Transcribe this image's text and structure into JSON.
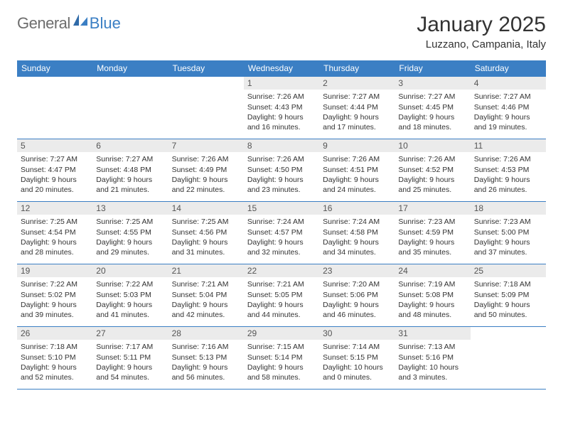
{
  "brand": {
    "general": "General",
    "blue": "Blue"
  },
  "title": "January 2025",
  "location": "Luzzano, Campania, Italy",
  "colors": {
    "header_bg": "#3b7fc4",
    "header_text": "#ffffff",
    "datebar_bg": "#ebebeb",
    "datebar_text": "#555555",
    "body_text": "#333333",
    "rule": "#3b7fc4",
    "logo_gray": "#6d6d6d",
    "logo_blue": "#3b7fc4"
  },
  "day_names": [
    "Sunday",
    "Monday",
    "Tuesday",
    "Wednesday",
    "Thursday",
    "Friday",
    "Saturday"
  ],
  "weeks": [
    [
      null,
      null,
      null,
      {
        "n": "1",
        "sr": "Sunrise: 7:26 AM",
        "ss": "Sunset: 4:43 PM",
        "d1": "Daylight: 9 hours",
        "d2": "and 16 minutes."
      },
      {
        "n": "2",
        "sr": "Sunrise: 7:27 AM",
        "ss": "Sunset: 4:44 PM",
        "d1": "Daylight: 9 hours",
        "d2": "and 17 minutes."
      },
      {
        "n": "3",
        "sr": "Sunrise: 7:27 AM",
        "ss": "Sunset: 4:45 PM",
        "d1": "Daylight: 9 hours",
        "d2": "and 18 minutes."
      },
      {
        "n": "4",
        "sr": "Sunrise: 7:27 AM",
        "ss": "Sunset: 4:46 PM",
        "d1": "Daylight: 9 hours",
        "d2": "and 19 minutes."
      }
    ],
    [
      {
        "n": "5",
        "sr": "Sunrise: 7:27 AM",
        "ss": "Sunset: 4:47 PM",
        "d1": "Daylight: 9 hours",
        "d2": "and 20 minutes."
      },
      {
        "n": "6",
        "sr": "Sunrise: 7:27 AM",
        "ss": "Sunset: 4:48 PM",
        "d1": "Daylight: 9 hours",
        "d2": "and 21 minutes."
      },
      {
        "n": "7",
        "sr": "Sunrise: 7:26 AM",
        "ss": "Sunset: 4:49 PM",
        "d1": "Daylight: 9 hours",
        "d2": "and 22 minutes."
      },
      {
        "n": "8",
        "sr": "Sunrise: 7:26 AM",
        "ss": "Sunset: 4:50 PM",
        "d1": "Daylight: 9 hours",
        "d2": "and 23 minutes."
      },
      {
        "n": "9",
        "sr": "Sunrise: 7:26 AM",
        "ss": "Sunset: 4:51 PM",
        "d1": "Daylight: 9 hours",
        "d2": "and 24 minutes."
      },
      {
        "n": "10",
        "sr": "Sunrise: 7:26 AM",
        "ss": "Sunset: 4:52 PM",
        "d1": "Daylight: 9 hours",
        "d2": "and 25 minutes."
      },
      {
        "n": "11",
        "sr": "Sunrise: 7:26 AM",
        "ss": "Sunset: 4:53 PM",
        "d1": "Daylight: 9 hours",
        "d2": "and 26 minutes."
      }
    ],
    [
      {
        "n": "12",
        "sr": "Sunrise: 7:25 AM",
        "ss": "Sunset: 4:54 PM",
        "d1": "Daylight: 9 hours",
        "d2": "and 28 minutes."
      },
      {
        "n": "13",
        "sr": "Sunrise: 7:25 AM",
        "ss": "Sunset: 4:55 PM",
        "d1": "Daylight: 9 hours",
        "d2": "and 29 minutes."
      },
      {
        "n": "14",
        "sr": "Sunrise: 7:25 AM",
        "ss": "Sunset: 4:56 PM",
        "d1": "Daylight: 9 hours",
        "d2": "and 31 minutes."
      },
      {
        "n": "15",
        "sr": "Sunrise: 7:24 AM",
        "ss": "Sunset: 4:57 PM",
        "d1": "Daylight: 9 hours",
        "d2": "and 32 minutes."
      },
      {
        "n": "16",
        "sr": "Sunrise: 7:24 AM",
        "ss": "Sunset: 4:58 PM",
        "d1": "Daylight: 9 hours",
        "d2": "and 34 minutes."
      },
      {
        "n": "17",
        "sr": "Sunrise: 7:23 AM",
        "ss": "Sunset: 4:59 PM",
        "d1": "Daylight: 9 hours",
        "d2": "and 35 minutes."
      },
      {
        "n": "18",
        "sr": "Sunrise: 7:23 AM",
        "ss": "Sunset: 5:00 PM",
        "d1": "Daylight: 9 hours",
        "d2": "and 37 minutes."
      }
    ],
    [
      {
        "n": "19",
        "sr": "Sunrise: 7:22 AM",
        "ss": "Sunset: 5:02 PM",
        "d1": "Daylight: 9 hours",
        "d2": "and 39 minutes."
      },
      {
        "n": "20",
        "sr": "Sunrise: 7:22 AM",
        "ss": "Sunset: 5:03 PM",
        "d1": "Daylight: 9 hours",
        "d2": "and 41 minutes."
      },
      {
        "n": "21",
        "sr": "Sunrise: 7:21 AM",
        "ss": "Sunset: 5:04 PM",
        "d1": "Daylight: 9 hours",
        "d2": "and 42 minutes."
      },
      {
        "n": "22",
        "sr": "Sunrise: 7:21 AM",
        "ss": "Sunset: 5:05 PM",
        "d1": "Daylight: 9 hours",
        "d2": "and 44 minutes."
      },
      {
        "n": "23",
        "sr": "Sunrise: 7:20 AM",
        "ss": "Sunset: 5:06 PM",
        "d1": "Daylight: 9 hours",
        "d2": "and 46 minutes."
      },
      {
        "n": "24",
        "sr": "Sunrise: 7:19 AM",
        "ss": "Sunset: 5:08 PM",
        "d1": "Daylight: 9 hours",
        "d2": "and 48 minutes."
      },
      {
        "n": "25",
        "sr": "Sunrise: 7:18 AM",
        "ss": "Sunset: 5:09 PM",
        "d1": "Daylight: 9 hours",
        "d2": "and 50 minutes."
      }
    ],
    [
      {
        "n": "26",
        "sr": "Sunrise: 7:18 AM",
        "ss": "Sunset: 5:10 PM",
        "d1": "Daylight: 9 hours",
        "d2": "and 52 minutes."
      },
      {
        "n": "27",
        "sr": "Sunrise: 7:17 AM",
        "ss": "Sunset: 5:11 PM",
        "d1": "Daylight: 9 hours",
        "d2": "and 54 minutes."
      },
      {
        "n": "28",
        "sr": "Sunrise: 7:16 AM",
        "ss": "Sunset: 5:13 PM",
        "d1": "Daylight: 9 hours",
        "d2": "and 56 minutes."
      },
      {
        "n": "29",
        "sr": "Sunrise: 7:15 AM",
        "ss": "Sunset: 5:14 PM",
        "d1": "Daylight: 9 hours",
        "d2": "and 58 minutes."
      },
      {
        "n": "30",
        "sr": "Sunrise: 7:14 AM",
        "ss": "Sunset: 5:15 PM",
        "d1": "Daylight: 10 hours",
        "d2": "and 0 minutes."
      },
      {
        "n": "31",
        "sr": "Sunrise: 7:13 AM",
        "ss": "Sunset: 5:16 PM",
        "d1": "Daylight: 10 hours",
        "d2": "and 3 minutes."
      },
      null
    ]
  ]
}
